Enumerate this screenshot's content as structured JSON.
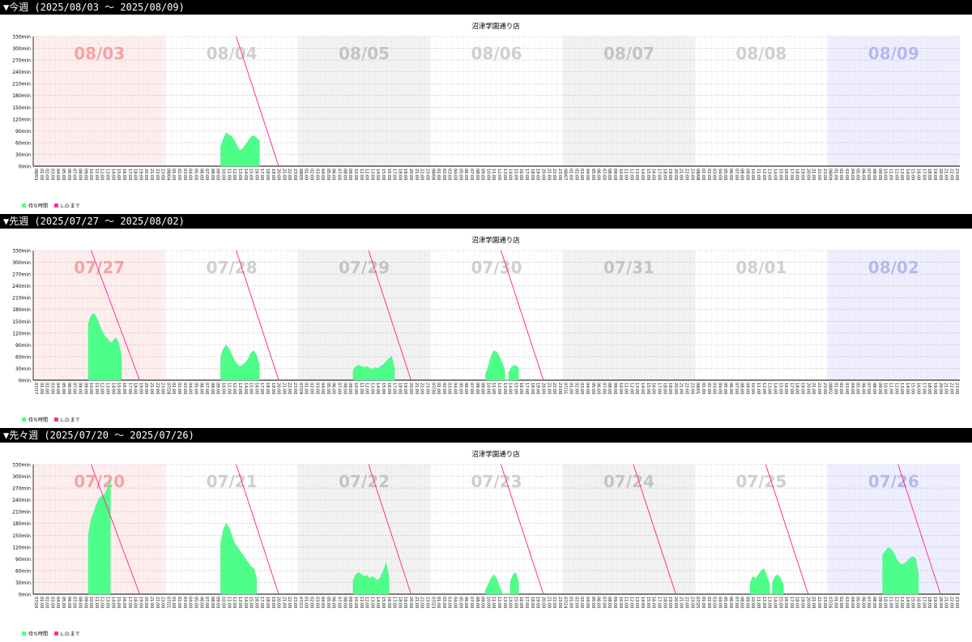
{
  "colors": {
    "wait": "#4dff88",
    "lo": "#ff2e9a",
    "sun": "#ffeeee",
    "sat": "#eeeeff",
    "alt": "#f2f2f2"
  },
  "hours": [
    "00:00",
    "01:00",
    "02:00",
    "03:00",
    "04:00",
    "05:00",
    "06:00",
    "07:00",
    "08:00",
    "09:00",
    "10:00",
    "11:00",
    "12:00",
    "13:00",
    "14:00",
    "15:00",
    "16:00",
    "17:00",
    "18:00",
    "19:00",
    "20:00",
    "21:00",
    "22:00",
    "23:00"
  ],
  "sections": [
    {
      "header": "▼今週 (2025/08/03 ～ 2025/08/09)",
      "chart_data": {
        "type": "area",
        "title": "沼津学園通り店",
        "ylabel": "",
        "xlabel": "",
        "ylim": [
          0,
          330
        ],
        "yticks": [
          "0min",
          "30min",
          "60min",
          "90min",
          "120min",
          "150min",
          "180min",
          "210min",
          "240min",
          "270min",
          "300min",
          "330min"
        ],
        "days": [
          "08/03",
          "08/04",
          "08/05",
          "08/06",
          "08/07",
          "08/08",
          "08/09"
        ],
        "date_labels": [
          "08/03",
          "08/04",
          "08/05",
          "08/06",
          "08/07",
          "08/08",
          "08/09"
        ],
        "legend": [
          "待ち時間",
          "L.O.まで"
        ],
        "wait": [
          [],
          [
            [
              10,
              0
            ],
            [
              10,
              50
            ],
            [
              10.5,
              70
            ],
            [
              11,
              85
            ],
            [
              11.5,
              80
            ],
            [
              12,
              75
            ],
            [
              12.5,
              65
            ],
            [
              13,
              50
            ],
            [
              13.5,
              40
            ],
            [
              14,
              45
            ],
            [
              14.5,
              55
            ],
            [
              15,
              65
            ],
            [
              15.5,
              75
            ],
            [
              16,
              78
            ],
            [
              16.5,
              72
            ],
            [
              17,
              65
            ],
            [
              17,
              0
            ]
          ],
          [],
          [],
          [],
          [],
          []
        ],
        "lo": [
          null,
          [
            12.8,
            20.5
          ],
          null,
          null,
          null,
          null,
          null
        ]
      }
    },
    {
      "header": "▼先週 (2025/07/27 ～ 2025/08/02)",
      "chart_data": {
        "type": "area",
        "title": "沼津学園通り店",
        "ylabel": "",
        "xlabel": "",
        "ylim": [
          0,
          330
        ],
        "yticks": [
          "0min",
          "30min",
          "60min",
          "90min",
          "120min",
          "150min",
          "180min",
          "210min",
          "240min",
          "270min",
          "300min",
          "330min"
        ],
        "days": [
          "07/27",
          "07/28",
          "07/29",
          "07/30",
          "07/31",
          "08/01",
          "08/02"
        ],
        "date_labels": [
          "07/27",
          "07/28",
          "07/29",
          "07/30",
          "07/31",
          "08/01",
          "08/02"
        ],
        "legend": [
          "待ち時間",
          "L.O.まで"
        ],
        "wait": [
          [
            [
              10,
              0
            ],
            [
              10,
              145
            ],
            [
              10.5,
              165
            ],
            [
              11,
              170
            ],
            [
              11.5,
              160
            ],
            [
              12,
              140
            ],
            [
              12.5,
              125
            ],
            [
              13,
              112
            ],
            [
              13.5,
              105
            ],
            [
              14,
              95
            ],
            [
              14.5,
              100
            ],
            [
              15,
              108
            ],
            [
              15.5,
              95
            ],
            [
              16,
              60
            ],
            [
              16,
              0
            ]
          ],
          [
            [
              10,
              0
            ],
            [
              10,
              60
            ],
            [
              10.5,
              80
            ],
            [
              11,
              90
            ],
            [
              11.5,
              80
            ],
            [
              12,
              65
            ],
            [
              12.5,
              50
            ],
            [
              13,
              40
            ],
            [
              13.5,
              35
            ],
            [
              14,
              40
            ],
            [
              14.5,
              45
            ],
            [
              15,
              55
            ],
            [
              15.5,
              70
            ],
            [
              16,
              75
            ],
            [
              16.5,
              62
            ],
            [
              17,
              40
            ],
            [
              17,
              0
            ]
          ],
          [
            [
              10,
              0
            ],
            [
              10,
              25
            ],
            [
              10.5,
              35
            ],
            [
              11,
              38
            ],
            [
              11.5,
              35
            ],
            [
              12,
              32
            ],
            [
              12.5,
              35
            ],
            [
              13,
              30
            ],
            [
              13.5,
              28
            ],
            [
              14,
              32
            ],
            [
              14.5,
              30
            ],
            [
              15,
              35
            ],
            [
              15.5,
              40
            ],
            [
              16,
              48
            ],
            [
              16.5,
              55
            ],
            [
              17,
              60
            ],
            [
              17.5,
              30
            ],
            [
              17.5,
              0
            ]
          ],
          [
            [
              10,
              0
            ],
            [
              10,
              15
            ],
            [
              10.5,
              35
            ],
            [
              11,
              60
            ],
            [
              11.5,
              75
            ],
            [
              12,
              72
            ],
            [
              12.5,
              60
            ],
            [
              13,
              45
            ],
            [
              13.5,
              25
            ],
            [
              13.5,
              0
            ],
            [
              14.2,
              0
            ],
            [
              14.2,
              20
            ],
            [
              14.8,
              35
            ],
            [
              15.5,
              38
            ],
            [
              16,
              30
            ],
            [
              16,
              0
            ]
          ],
          [],
          [],
          []
        ],
        "lo": [
          [
            10.5,
            19.3
          ],
          [
            12.8,
            20.5
          ],
          [
            12.8,
            20.5
          ],
          [
            12.8,
            20.5
          ],
          null,
          null,
          null
        ]
      }
    },
    {
      "header": "▼先々週 (2025/07/20 ～ 2025/07/26)",
      "chart_data": {
        "type": "area",
        "title": "沼津学園通り店",
        "ylabel": "",
        "xlabel": "",
        "ylim": [
          0,
          330
        ],
        "yticks": [
          "0min",
          "30min",
          "60min",
          "90min",
          "120min",
          "150min",
          "180min",
          "210min",
          "240min",
          "270min",
          "300min",
          "330min"
        ],
        "days": [
          "07/20",
          "07/21",
          "07/22",
          "07/23",
          "07/24",
          "07/25",
          "07/26"
        ],
        "date_labels": [
          "07/20",
          "07/21",
          "07/22",
          "07/23",
          "07/24",
          "07/25",
          "07/26"
        ],
        "legend": [
          "待ち時間",
          "L.O.まで"
        ],
        "wait": [
          [
            [
              10,
              0
            ],
            [
              10,
              150
            ],
            [
              10.5,
              190
            ],
            [
              11,
              210
            ],
            [
              11.5,
              230
            ],
            [
              12,
              245
            ],
            [
              12.5,
              250
            ],
            [
              13,
              255
            ],
            [
              13.5,
              270
            ],
            [
              14,
              290
            ],
            [
              14,
              0
            ]
          ],
          [
            [
              10,
              0
            ],
            [
              10,
              130
            ],
            [
              10.5,
              165
            ],
            [
              11,
              180
            ],
            [
              11.5,
              170
            ],
            [
              12,
              150
            ],
            [
              12.5,
              130
            ],
            [
              13,
              120
            ],
            [
              13.5,
              110
            ],
            [
              14,
              100
            ],
            [
              14.5,
              90
            ],
            [
              15,
              80
            ],
            [
              15.5,
              70
            ],
            [
              16,
              65
            ],
            [
              16.5,
              40
            ],
            [
              16.5,
              0
            ]
          ],
          [
            [
              10,
              0
            ],
            [
              10,
              35
            ],
            [
              10.5,
              50
            ],
            [
              11,
              55
            ],
            [
              11.5,
              50
            ],
            [
              12,
              45
            ],
            [
              12.5,
              48
            ],
            [
              13,
              40
            ],
            [
              13.5,
              45
            ],
            [
              14,
              40
            ],
            [
              14.5,
              35
            ],
            [
              15,
              45
            ],
            [
              15.5,
              60
            ],
            [
              16,
              80
            ],
            [
              16.5,
              40
            ],
            [
              16.5,
              0
            ]
          ],
          [
            [
              10,
              0
            ],
            [
              10,
              10
            ],
            [
              10.5,
              25
            ],
            [
              11,
              40
            ],
            [
              11.5,
              50
            ],
            [
              12,
              40
            ],
            [
              12.5,
              20
            ],
            [
              13,
              5
            ],
            [
              13,
              0
            ],
            [
              14.5,
              0
            ],
            [
              14.5,
              30
            ],
            [
              15,
              50
            ],
            [
              15.5,
              55
            ],
            [
              16,
              30
            ],
            [
              16,
              0
            ]
          ],
          [],
          [
            [
              10,
              0
            ],
            [
              10,
              30
            ],
            [
              10.5,
              45
            ],
            [
              11,
              40
            ],
            [
              11.5,
              50
            ],
            [
              12,
              60
            ],
            [
              12.5,
              65
            ],
            [
              13,
              45
            ],
            [
              13.5,
              25
            ],
            [
              13.5,
              0
            ],
            [
              14,
              0
            ],
            [
              14,
              30
            ],
            [
              14.5,
              45
            ],
            [
              15,
              50
            ],
            [
              15.5,
              40
            ],
            [
              16,
              25
            ],
            [
              16,
              0
            ]
          ],
          [
            [
              10,
              0
            ],
            [
              10,
              100
            ],
            [
              10.5,
              110
            ],
            [
              11,
              118
            ],
            [
              11.5,
              115
            ],
            [
              12,
              105
            ],
            [
              12.5,
              90
            ],
            [
              13,
              80
            ],
            [
              13.5,
              75
            ],
            [
              14,
              78
            ],
            [
              14.5,
              85
            ],
            [
              15,
              92
            ],
            [
              15.5,
              95
            ],
            [
              16,
              90
            ],
            [
              16.5,
              50
            ],
            [
              16.5,
              0
            ]
          ]
        ],
        "lo": [
          [
            10.5,
            19.3
          ],
          [
            12.8,
            20.5
          ],
          [
            12.8,
            20.5
          ],
          [
            12.8,
            20.5
          ],
          [
            12.8,
            20.5
          ],
          [
            12.8,
            20.5
          ],
          [
            12.8,
            20.5
          ]
        ]
      }
    }
  ]
}
